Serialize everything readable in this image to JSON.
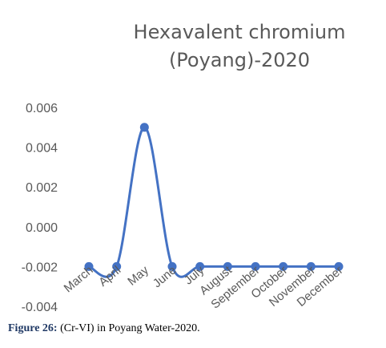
{
  "chart_data": {
    "type": "line",
    "title_lines": [
      "Hexavalent chromium",
      "(Poyang)-2020"
    ],
    "categories": [
      "March",
      "April",
      "May",
      "June",
      "July",
      "August",
      "September",
      "October",
      "November",
      "December"
    ],
    "series": [
      {
        "values": [
          -0.002,
          -0.002,
          0.005,
          -0.002,
          -0.002,
          -0.002,
          -0.002,
          -0.002,
          -0.002,
          -0.002
        ]
      }
    ],
    "ylim": [
      -0.004,
      0.006
    ],
    "yticks": [
      -0.004,
      -0.002,
      0.0,
      0.002,
      0.004,
      0.006
    ],
    "ytick_labels": [
      "-0.004",
      "-0.002",
      "0.000",
      "0.002",
      "0.004",
      "0.006"
    ],
    "smooth": true,
    "markers": true,
    "grid": false,
    "legend": "none",
    "line_color": "#4472c4",
    "text_color": "#595959"
  },
  "caption": {
    "label": "Figure 26:",
    "text": " (Cr-VI) in Poyang Water-2020."
  }
}
